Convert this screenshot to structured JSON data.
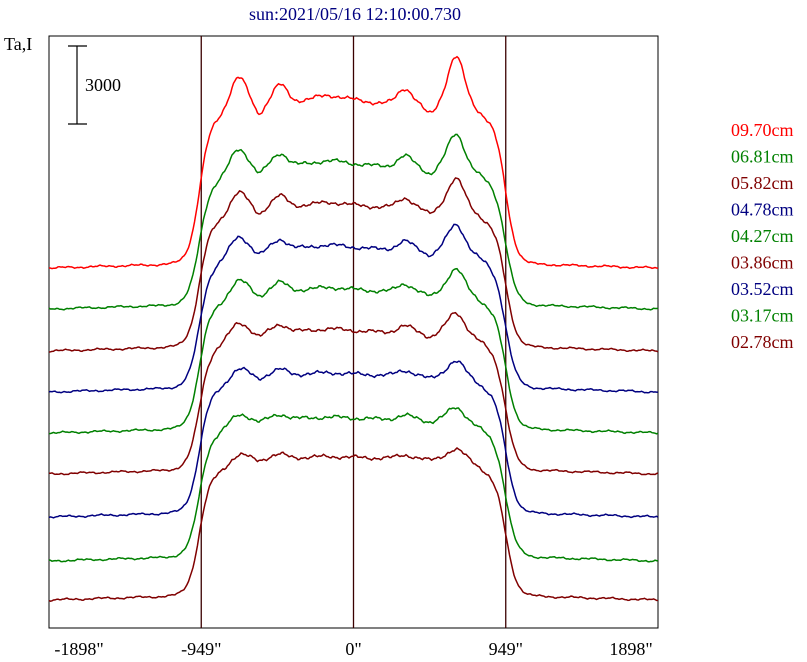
{
  "chart_data": {
    "type": "line",
    "title": "sun:2021/05/16 12:10:00.730",
    "ylabel": "Ta,I",
    "scale_bar_label": "3000",
    "x_ticks": [
      {
        "value": -1898,
        "label": "-1898\""
      },
      {
        "value": -949,
        "label": "-949\""
      },
      {
        "value": 0,
        "label": "0\""
      },
      {
        "value": 949,
        "label": "949\""
      },
      {
        "value": 1898,
        "label": "1898\""
      }
    ],
    "xlim": [
      -1898,
      1898
    ],
    "grid": "vertical lines at -949, 0, 949",
    "legend_position": "right",
    "series": [
      {
        "name": "09.70cm",
        "color": "#ff0000",
        "offset_rank": 8
      },
      {
        "name": "06.81cm",
        "color": "#008000",
        "offset_rank": 7
      },
      {
        "name": "05.82cm",
        "color": "#800000",
        "offset_rank": 6
      },
      {
        "name": "04.78cm",
        "color": "#000080",
        "offset_rank": 5
      },
      {
        "name": "04.27cm",
        "color": "#008000",
        "offset_rank": 4
      },
      {
        "name": "03.86cm",
        "color": "#800000",
        "offset_rank": 3
      },
      {
        "name": "03.52cm",
        "color": "#000080",
        "offset_rank": 2
      },
      {
        "name": "03.17cm",
        "color": "#008000",
        "offset_rank": 1
      },
      {
        "name": "02.78cm",
        "color": "#800000",
        "offset_rank": 0
      }
    ],
    "profile_shape": "flat baseline outside the solar disk, steep limb rise near ±949\", plateau across the disk with emission peaks near -650\", -370\", +270\" and +560\" (strongest at +560\" in the longest wavelengths)"
  }
}
